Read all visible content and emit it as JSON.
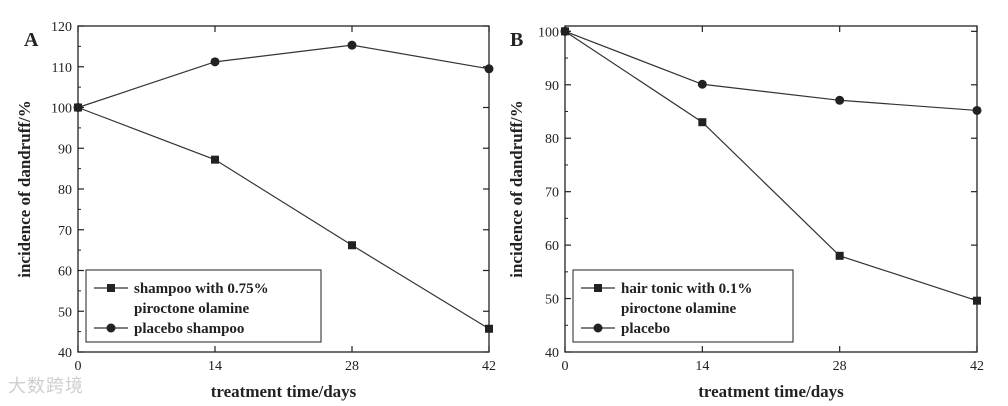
{
  "chart_data": [
    {
      "type": "line",
      "panel": "A",
      "xlabel": "treatment time/days",
      "ylabel": "incidence of dandruff/%",
      "x": [
        0,
        14,
        28,
        42
      ],
      "xticks": [
        0,
        14,
        28,
        42
      ],
      "xlim": [
        0,
        42
      ],
      "yticks": [
        40,
        50,
        60,
        70,
        80,
        90,
        100,
        110,
        120
      ],
      "ylim": [
        40,
        120
      ],
      "grid": false,
      "legend_position": "bottom-left",
      "series": [
        {
          "name": "shampoo with 0.75%",
          "name_line2": "piroctone olamine",
          "marker": "square",
          "values": [
            100,
            87.2,
            66.2,
            45.7
          ]
        },
        {
          "name": "placebo shampoo",
          "marker": "circle",
          "values": [
            100,
            111.2,
            115.3,
            109.5
          ]
        }
      ]
    },
    {
      "type": "line",
      "panel": "B",
      "xlabel": "treatment time/days",
      "ylabel": "incidence of dandruff/%",
      "x": [
        0,
        14,
        28,
        42
      ],
      "xticks": [
        0,
        14,
        28,
        42
      ],
      "xlim": [
        0,
        42
      ],
      "yticks": [
        40,
        50,
        60,
        70,
        80,
        90,
        100
      ],
      "ylim": [
        40,
        101
      ],
      "grid": false,
      "legend_position": "bottom-left",
      "series": [
        {
          "name": "hair tonic with 0.1%",
          "name_line2": "piroctone olamine",
          "marker": "square",
          "values": [
            100,
            83.0,
            58.0,
            49.6
          ]
        },
        {
          "name": "placebo",
          "marker": "circle",
          "values": [
            100,
            90.1,
            87.1,
            85.2
          ]
        }
      ]
    }
  ],
  "watermark": "大数跨境"
}
